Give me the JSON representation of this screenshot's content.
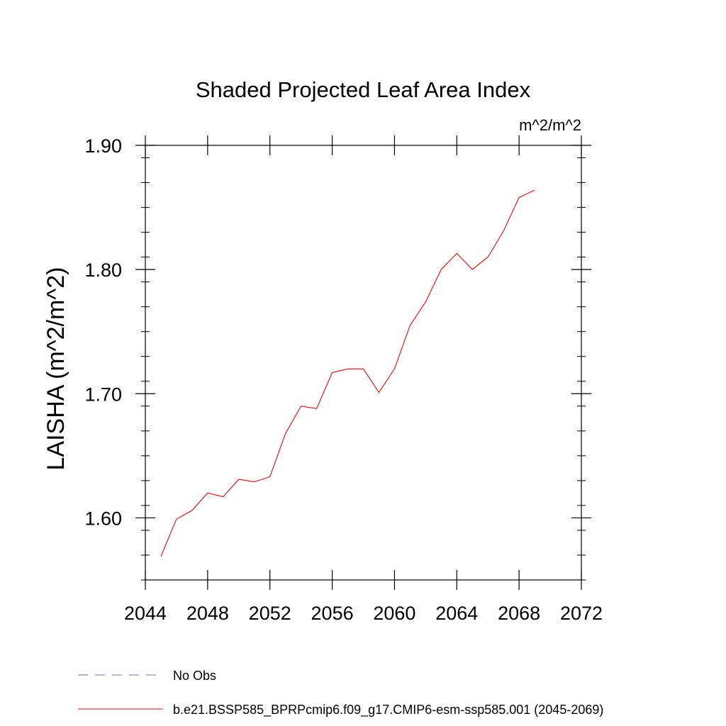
{
  "chart_data": {
    "type": "line",
    "title": "Shaded Projected Leaf Area Index",
    "units": "m^2/m^2",
    "ylabel": "LAISHA  (m^2/m^2)",
    "xlabel": "",
    "xlim": [
      2044,
      2072
    ],
    "ylim": [
      1.55,
      1.9
    ],
    "x_ticks": [
      2044,
      2048,
      2052,
      2056,
      2060,
      2064,
      2068,
      2072
    ],
    "x_tick_labels": [
      "2044",
      "2048",
      "2052",
      "2056",
      "2060",
      "2064",
      "2068",
      "2072"
    ],
    "y_ticks": [
      1.6,
      1.7,
      1.8,
      1.9
    ],
    "y_tick_labels": [
      "1.60",
      "1.70",
      "1.80",
      "1.90"
    ],
    "grid": false,
    "legend_position": "bottom-left",
    "series": [
      {
        "name": "No Obs",
        "color": "#7b68c8",
        "dash": "dashed",
        "x": [],
        "values": []
      },
      {
        "name": "b.e21.BSSP585_BPRPcmip6.f09_g17.CMIP6-esm-ssp585.001 (2045-2069)",
        "color": "#ff0000",
        "dash": "solid",
        "x": [
          2045,
          2046,
          2047,
          2048,
          2049,
          2050,
          2051,
          2052,
          2053,
          2054,
          2055,
          2056,
          2057,
          2058,
          2059,
          2060,
          2061,
          2062,
          2063,
          2064,
          2065,
          2066,
          2067,
          2068,
          2069
        ],
        "values": [
          1.569,
          1.599,
          1.606,
          1.62,
          1.617,
          1.631,
          1.629,
          1.633,
          1.668,
          1.69,
          1.688,
          1.717,
          1.72,
          1.72,
          1.701,
          1.72,
          1.755,
          1.774,
          1.8,
          1.813,
          1.8,
          1.81,
          1.831,
          1.858,
          1.864
        ]
      }
    ]
  }
}
